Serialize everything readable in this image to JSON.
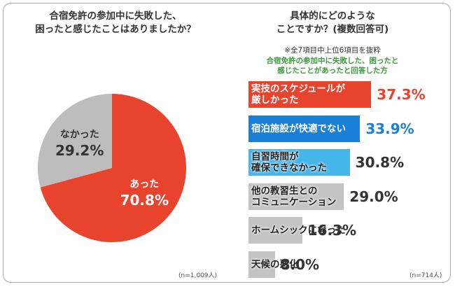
{
  "chart_data": [
    {
      "type": "pie",
      "title": "合宿免許の参加中に失敗した、\n困ったと感じたことはありましたか？",
      "categories": [
        "あった",
        "なかった"
      ],
      "values": [
        70.8,
        29.2
      ],
      "value_labels": [
        "70.8%",
        "29.2%"
      ],
      "colors": [
        "#e8432d",
        "#bdbdbd"
      ],
      "note": "(n=1,009人)"
    },
    {
      "type": "bar",
      "title": "具体的にどのような\nことですか？(複数回答可)",
      "subtitle": "※全7項目中上位6項目を抜粋",
      "annotation": "合宿免許の参加中に失敗した、困ったと\n感じたことがあったと回答した方",
      "categories": [
        "実技のスケジュールが\n厳しかった",
        "宿泊施設が快適でない",
        "自習時間が\n確保できなかった",
        "他の教習生との\nコミュニケーション",
        "ホームシックになった",
        "天候の悪化"
      ],
      "values": [
        37.3,
        33.9,
        30.8,
        29.0,
        16.3,
        8.0
      ],
      "value_labels": [
        "37.3%",
        "33.9%",
        "30.8%",
        "29.0%",
        "16.3%",
        "8.0%"
      ],
      "colors": [
        "#e8432d",
        "#1a7fd6",
        "#45b5ea",
        "#c4c4c4",
        "#c4c4c4",
        "#c4c4c4"
      ],
      "note": "(n=714人)"
    }
  ]
}
